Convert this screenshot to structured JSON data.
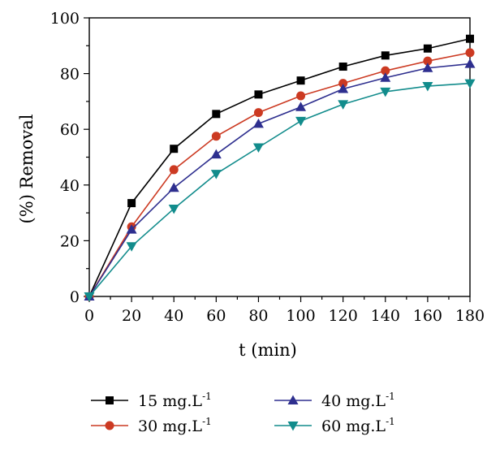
{
  "chart_data": {
    "type": "line",
    "title": "",
    "xlabel": "t (min)",
    "ylabel": "(%) Removal",
    "xlim": [
      0,
      180
    ],
    "ylim": [
      0,
      100
    ],
    "x_ticks": [
      0,
      20,
      40,
      60,
      80,
      100,
      120,
      140,
      160,
      180
    ],
    "y_ticks": [
      0,
      20,
      40,
      60,
      80,
      100
    ],
    "grid": false,
    "legend_position": "bottom",
    "x": [
      0,
      20,
      40,
      60,
      80,
      100,
      120,
      140,
      160,
      180
    ],
    "series": [
      {
        "name": "15 mg.L",
        "name_sup": "-1",
        "color": "#000000",
        "marker": "square",
        "values": [
          0,
          33.5,
          53,
          65.5,
          72.5,
          77.5,
          82.5,
          86.5,
          89,
          92.5
        ]
      },
      {
        "name": "30 mg.L",
        "name_sup": "-1",
        "color": "#cc3a22",
        "marker": "circle",
        "values": [
          0,
          25,
          45.5,
          57.5,
          66,
          72,
          76.5,
          81,
          84.5,
          87.5
        ]
      },
      {
        "name": "40 mg.L",
        "name_sup": "-1",
        "color": "#2e2f8f",
        "marker": "triangle-up",
        "values": [
          0,
          24,
          39,
          51,
          62,
          68,
          74.5,
          78.5,
          82,
          83.5
        ]
      },
      {
        "name": "60 mg.L",
        "name_sup": "-1",
        "color": "#128c8c",
        "marker": "triangle-down",
        "values": [
          0,
          18,
          31.5,
          44,
          53.5,
          63,
          69,
          73.5,
          75.5,
          76.5
        ]
      }
    ]
  }
}
